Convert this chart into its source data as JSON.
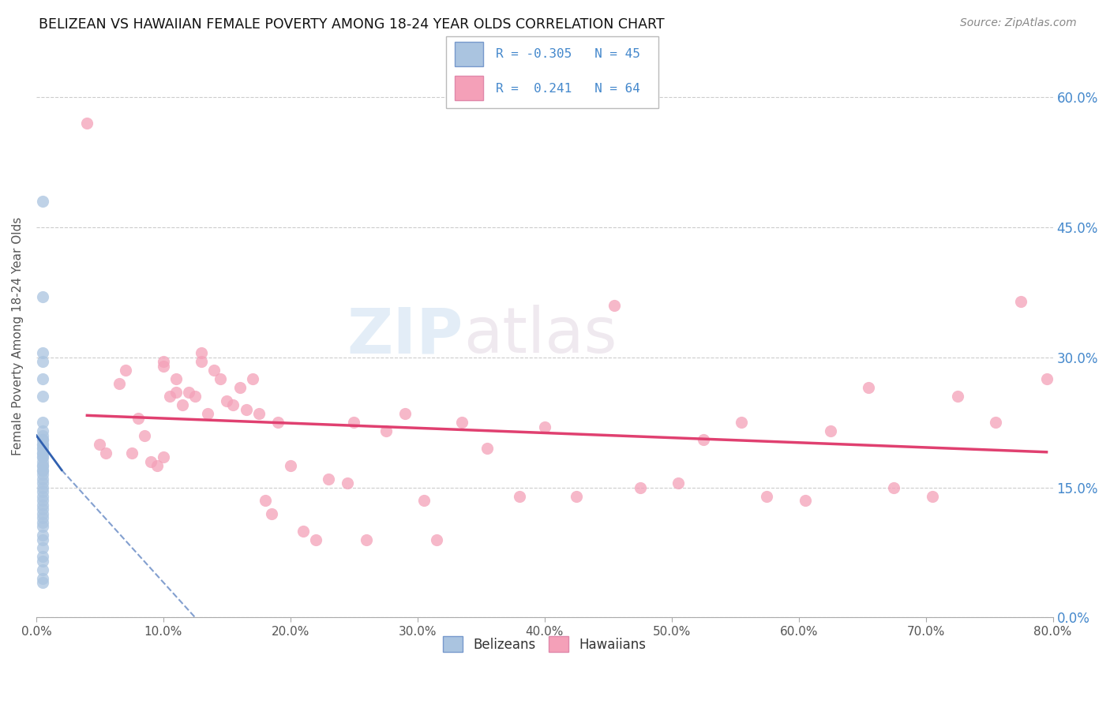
{
  "title": "BELIZEAN VS HAWAIIAN FEMALE POVERTY AMONG 18-24 YEAR OLDS CORRELATION CHART",
  "source": "Source: ZipAtlas.com",
  "ylabel": "Female Poverty Among 18-24 Year Olds",
  "R_belizean": -0.305,
  "N_belizean": 45,
  "R_hawaiian": 0.241,
  "N_hawaiian": 64,
  "color_belizean": "#aac4e0",
  "color_hawaiian": "#f4a0b8",
  "line_color_belizean": "#3060b0",
  "line_color_hawaiian": "#e04070",
  "watermark_zip": "ZIP",
  "watermark_atlas": "atlas",
  "xlim": [
    0.0,
    0.8
  ],
  "ylim": [
    0.0,
    0.65
  ],
  "belizean_x": [
    0.005,
    0.005,
    0.005,
    0.005,
    0.005,
    0.005,
    0.005,
    0.005,
    0.005,
    0.005,
    0.005,
    0.005,
    0.005,
    0.005,
    0.005,
    0.005,
    0.005,
    0.005,
    0.005,
    0.005,
    0.005,
    0.005,
    0.005,
    0.005,
    0.005,
    0.005,
    0.005,
    0.005,
    0.005,
    0.005,
    0.005,
    0.005,
    0.005,
    0.005,
    0.005,
    0.005,
    0.005,
    0.005,
    0.005,
    0.005,
    0.005,
    0.005,
    0.005,
    0.005,
    0.005
  ],
  "belizean_y": [
    0.48,
    0.37,
    0.305,
    0.295,
    0.275,
    0.255,
    0.225,
    0.215,
    0.21,
    0.205,
    0.205,
    0.2,
    0.2,
    0.195,
    0.195,
    0.19,
    0.19,
    0.185,
    0.185,
    0.18,
    0.175,
    0.175,
    0.17,
    0.17,
    0.165,
    0.16,
    0.155,
    0.15,
    0.145,
    0.14,
    0.135,
    0.13,
    0.125,
    0.12,
    0.115,
    0.11,
    0.105,
    0.095,
    0.09,
    0.08,
    0.07,
    0.065,
    0.055,
    0.045,
    0.04
  ],
  "hawaiian_x": [
    0.04,
    0.05,
    0.055,
    0.065,
    0.07,
    0.075,
    0.08,
    0.085,
    0.09,
    0.095,
    0.1,
    0.1,
    0.105,
    0.1,
    0.11,
    0.11,
    0.115,
    0.12,
    0.125,
    0.13,
    0.13,
    0.135,
    0.14,
    0.145,
    0.15,
    0.155,
    0.16,
    0.165,
    0.17,
    0.175,
    0.18,
    0.185,
    0.19,
    0.2,
    0.21,
    0.22,
    0.23,
    0.245,
    0.25,
    0.26,
    0.275,
    0.29,
    0.305,
    0.315,
    0.335,
    0.355,
    0.38,
    0.4,
    0.425,
    0.455,
    0.475,
    0.505,
    0.525,
    0.555,
    0.575,
    0.605,
    0.625,
    0.655,
    0.675,
    0.705,
    0.725,
    0.755,
    0.775,
    0.795
  ],
  "hawaiian_y": [
    0.57,
    0.2,
    0.19,
    0.27,
    0.285,
    0.19,
    0.23,
    0.21,
    0.18,
    0.175,
    0.295,
    0.29,
    0.255,
    0.185,
    0.275,
    0.26,
    0.245,
    0.26,
    0.255,
    0.305,
    0.295,
    0.235,
    0.285,
    0.275,
    0.25,
    0.245,
    0.265,
    0.24,
    0.275,
    0.235,
    0.135,
    0.12,
    0.225,
    0.175,
    0.1,
    0.09,
    0.16,
    0.155,
    0.225,
    0.09,
    0.215,
    0.235,
    0.135,
    0.09,
    0.225,
    0.195,
    0.14,
    0.22,
    0.14,
    0.36,
    0.15,
    0.155,
    0.205,
    0.225,
    0.14,
    0.135,
    0.215,
    0.265,
    0.15,
    0.14,
    0.255,
    0.225,
    0.365,
    0.275
  ]
}
